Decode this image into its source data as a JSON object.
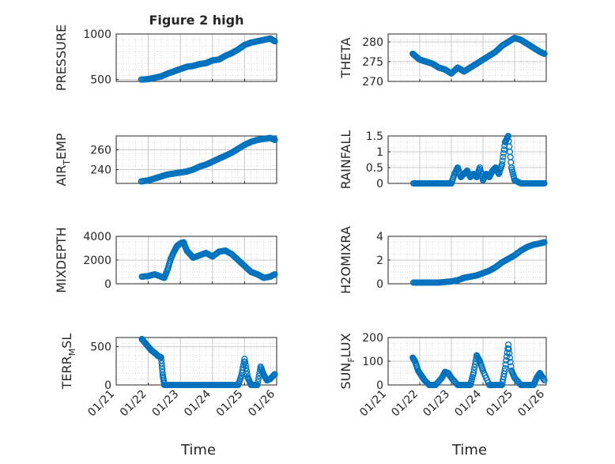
{
  "figure": {
    "title": "Figure 2 high",
    "xlabel": "Time",
    "marker_color": "#0072BD"
  },
  "chart_data": [
    {
      "type": "scatter",
      "panel": "top-left",
      "title": "Figure 2 high",
      "ylabel": "PRESSURE",
      "ylabel_sub": "",
      "ylim": [
        480,
        1000
      ],
      "yticks": [
        500,
        1000
      ],
      "ytick_labels": [
        "500",
        "1000"
      ],
      "xlim": [
        "01/21",
        "01/26"
      ],
      "xtick_labels": [],
      "grid": true,
      "series": [
        {
          "x": [
            0.78,
            1.0,
            1.2,
            1.4,
            1.6,
            1.8,
            2.0,
            2.2,
            2.4,
            2.6,
            2.8,
            3.0,
            3.2,
            3.4,
            3.6,
            3.8,
            4.0,
            4.2,
            4.4,
            4.6,
            4.8,
            4.94
          ],
          "y": [
            500,
            505,
            520,
            535,
            565,
            590,
            615,
            640,
            650,
            670,
            680,
            710,
            720,
            760,
            790,
            830,
            880,
            905,
            920,
            935,
            950,
            920
          ]
        }
      ]
    },
    {
      "type": "scatter",
      "panel": "top-right",
      "ylabel": "THETA",
      "ylabel_sub": "",
      "ylim": [
        270,
        282
      ],
      "yticks": [
        270,
        275,
        280
      ],
      "ytick_labels": [
        "270",
        "275",
        "280"
      ],
      "xlim": [
        "01/21",
        "01/26"
      ],
      "xtick_labels": [],
      "grid": true,
      "series": [
        {
          "x": [
            0.78,
            0.85,
            1.0,
            1.2,
            1.4,
            1.6,
            1.8,
            2.0,
            2.2,
            2.4,
            2.6,
            2.8,
            3.0,
            3.2,
            3.4,
            3.6,
            3.8,
            4.0,
            4.2,
            4.4,
            4.6,
            4.8,
            4.94
          ],
          "y": [
            277,
            276.5,
            275.5,
            275,
            274.5,
            273.5,
            273,
            272,
            273.5,
            272.5,
            273.5,
            274.5,
            275.5,
            276.5,
            277.5,
            279,
            280,
            281,
            280.5,
            279.5,
            278.5,
            277.5,
            277
          ]
        }
      ]
    },
    {
      "type": "scatter",
      "panel": "second-left",
      "ylabel": "AIR",
      "ylabel_sub": "T",
      "ylabel_end": "EMP",
      "ylim": [
        226,
        274
      ],
      "yticks": [
        240,
        260
      ],
      "ytick_labels": [
        "240",
        "260"
      ],
      "xlim": [
        "01/21",
        "01/26"
      ],
      "xtick_labels": [],
      "grid": true,
      "series": [
        {
          "x": [
            0.78,
            1.0,
            1.2,
            1.4,
            1.6,
            1.8,
            2.0,
            2.2,
            2.4,
            2.6,
            2.8,
            3.0,
            3.2,
            3.4,
            3.6,
            3.8,
            4.0,
            4.2,
            4.4,
            4.6,
            4.8,
            4.94
          ],
          "y": [
            228,
            229,
            231,
            233,
            235,
            236,
            237,
            238,
            240,
            243,
            245,
            248,
            251,
            254,
            257,
            261,
            265,
            268,
            270,
            271,
            272,
            270
          ]
        }
      ]
    },
    {
      "type": "scatter",
      "panel": "second-right",
      "ylabel": "RAINFALL",
      "ylabel_sub": "",
      "ylim": [
        0,
        1.5
      ],
      "yticks": [
        0,
        0.5,
        1,
        1.5
      ],
      "ytick_labels": [
        "0",
        "0.5",
        "1",
        "1.5"
      ],
      "xlim": [
        "01/21",
        "01/26"
      ],
      "xtick_labels": [],
      "grid": true,
      "series": [
        {
          "x": [
            0.8,
            1.0,
            1.2,
            1.4,
            1.6,
            1.8,
            2.0,
            2.1,
            2.2,
            2.3,
            2.4,
            2.5,
            2.6,
            2.7,
            2.8,
            2.9,
            3.0,
            3.1,
            3.2,
            3.3,
            3.4,
            3.5,
            3.6,
            3.7,
            3.8,
            3.9,
            4.0,
            4.2,
            4.4,
            4.6,
            4.8,
            4.94
          ],
          "y": [
            0,
            0,
            0,
            0,
            0,
            0,
            0,
            0.3,
            0.5,
            0.2,
            0.3,
            0.4,
            0.2,
            0.3,
            0.2,
            0.5,
            0.1,
            0.3,
            0.2,
            0.4,
            0.5,
            0.3,
            0.6,
            1.3,
            1.5,
            0.5,
            0.1,
            0,
            0,
            0,
            0,
            0
          ]
        }
      ]
    },
    {
      "type": "scatter",
      "panel": "third-left",
      "ylabel": "MIXDEPTH",
      "ylabel_sub": "",
      "ylim": [
        0,
        4000
      ],
      "yticks": [
        0,
        2000,
        4000
      ],
      "ytick_labels": [
        "0",
        "2000",
        "4000"
      ],
      "xlim": [
        "01/21",
        "01/26"
      ],
      "xtick_labels": [],
      "grid": true,
      "series": [
        {
          "x": [
            0.8,
            1.0,
            1.2,
            1.4,
            1.5,
            1.6,
            1.7,
            1.8,
            1.9,
            2.0,
            2.1,
            2.2,
            2.3,
            2.4,
            2.6,
            2.8,
            3.0,
            3.2,
            3.4,
            3.6,
            3.8,
            4.0,
            4.2,
            4.4,
            4.6,
            4.8,
            4.94
          ],
          "y": [
            600,
            650,
            800,
            600,
            500,
            1200,
            2100,
            2700,
            3200,
            3400,
            3500,
            2800,
            2500,
            2200,
            2400,
            2600,
            2300,
            2700,
            2800,
            2500,
            2000,
            1500,
            1000,
            800,
            500,
            600,
            800
          ]
        }
      ]
    },
    {
      "type": "scatter",
      "panel": "third-right",
      "ylabel": "H2OMIXRA",
      "ylabel_sub": "",
      "ylim": [
        0,
        4
      ],
      "yticks": [
        0,
        2,
        4
      ],
      "ytick_labels": [
        "0",
        "2",
        "4"
      ],
      "xlim": [
        "01/21",
        "01/26"
      ],
      "xtick_labels": [],
      "grid": true,
      "series": [
        {
          "x": [
            0.8,
            1.0,
            1.2,
            1.4,
            1.6,
            1.8,
            2.0,
            2.2,
            2.4,
            2.6,
            2.8,
            3.0,
            3.2,
            3.4,
            3.6,
            3.8,
            4.0,
            4.2,
            4.4,
            4.6,
            4.8,
            4.94
          ],
          "y": [
            0.1,
            0.1,
            0.1,
            0.1,
            0.1,
            0.15,
            0.2,
            0.3,
            0.5,
            0.6,
            0.7,
            0.9,
            1.1,
            1.4,
            1.8,
            2.1,
            2.4,
            2.8,
            3.1,
            3.3,
            3.4,
            3.5
          ]
        }
      ]
    },
    {
      "type": "scatter",
      "panel": "bottom-left",
      "ylabel": "TERR",
      "ylabel_sub": "M",
      "ylabel_end": "SL",
      "ylim": [
        0,
        620
      ],
      "yticks": [
        0,
        500
      ],
      "ytick_labels": [
        "0",
        "500"
      ],
      "xlim": [
        "01/21",
        "01/26"
      ],
      "xtick_labels": [
        "01/21",
        "01/22",
        "01/23",
        "01/24",
        "01/25",
        "01/26"
      ],
      "grid": true,
      "series": [
        {
          "x": [
            0.8,
            0.9,
            1.0,
            1.1,
            1.2,
            1.3,
            1.4,
            1.45,
            1.5,
            1.6,
            1.8,
            2.0,
            2.2,
            2.4,
            2.6,
            2.8,
            3.0,
            3.2,
            3.4,
            3.6,
            3.8,
            3.9,
            4.0,
            4.1,
            4.2,
            4.4,
            4.5,
            4.6,
            4.7,
            4.8,
            4.94
          ],
          "y": [
            600,
            550,
            500,
            450,
            420,
            380,
            360,
            130,
            0,
            0,
            0,
            0,
            0,
            0,
            0,
            0,
            0,
            0,
            0,
            0,
            0,
            120,
            340,
            100,
            0,
            0,
            240,
            130,
            60,
            80,
            140
          ]
        }
      ]
    },
    {
      "type": "scatter",
      "panel": "bottom-right",
      "ylabel": "SUN",
      "ylabel_sub": "F",
      "ylabel_end": "LUX",
      "ylim": [
        0,
        200
      ],
      "yticks": [
        0,
        100,
        200
      ],
      "ytick_labels": [
        "0",
        "100",
        "200"
      ],
      "xlim": [
        "01/21",
        "01/26"
      ],
      "xtick_labels": [
        "01/21",
        "01/22",
        "01/23",
        "01/24",
        "01/25",
        "01/26"
      ],
      "grid": true,
      "series": [
        {
          "x": [
            0.78,
            0.85,
            0.95,
            1.05,
            1.15,
            1.3,
            1.5,
            1.7,
            1.8,
            1.9,
            2.0,
            2.2,
            2.4,
            2.6,
            2.7,
            2.8,
            2.9,
            3.0,
            3.2,
            3.4,
            3.6,
            3.7,
            3.8,
            3.9,
            4.0,
            4.2,
            4.4,
            4.6,
            4.7,
            4.8,
            4.94
          ],
          "y": [
            115,
            100,
            60,
            40,
            20,
            0,
            0,
            30,
            55,
            50,
            30,
            0,
            0,
            0,
            50,
            125,
            100,
            60,
            0,
            0,
            0,
            70,
            170,
            60,
            30,
            0,
            0,
            0,
            30,
            50,
            20
          ]
        }
      ]
    }
  ]
}
